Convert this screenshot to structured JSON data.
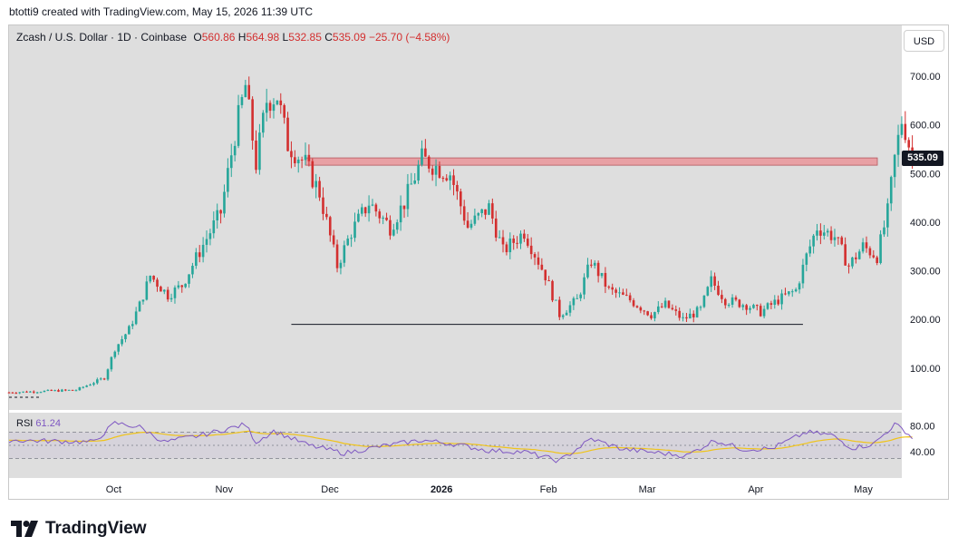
{
  "header": {
    "attribution": "btotti9 created with TradingView.com, May 15, 2026 11:39 UTC"
  },
  "legend": {
    "symbol": "Zcash / U.S. Dollar · 1D · Coinbase",
    "o_label": "O",
    "o": "560.86",
    "h_label": "H",
    "h": "564.98",
    "l_label": "L",
    "l": "532.85",
    "c_label": "C",
    "c": "535.09",
    "change": "−25.70 (−4.58%)"
  },
  "currency_button": "USD",
  "last_price_tag": "535.09",
  "rsi": {
    "label": "RSI",
    "value": "61.24",
    "levels": [
      "80.00",
      "40.00"
    ],
    "overbought": 70,
    "oversold": 30
  },
  "footer": {
    "brand": "TradingView"
  },
  "colors": {
    "up": "#26a69a",
    "down": "#d32f2f",
    "rsi": "#7e57c2",
    "rsi_ma": "#f0c419",
    "zone": "#e8a0a4"
  },
  "chart_data": {
    "type": "candlestick",
    "symbol": "ZEC/USD",
    "interval": "1D",
    "y_ticks": [
      100,
      200,
      300,
      400,
      500,
      600,
      700
    ],
    "y_tick_labels": [
      "100.00",
      "200.00",
      "300.00",
      "400.00",
      "500.00",
      "600.00",
      "700.00"
    ],
    "ylim": [
      0,
      780
    ],
    "x_ticks": [
      "Oct",
      "Nov",
      "Dec",
      "2026",
      "Feb",
      "Mar",
      "Apr",
      "May"
    ],
    "date_range": [
      "2025-09-01",
      "2026-05-15"
    ],
    "annotations": {
      "resistance_zone": [
        517,
        532
      ],
      "support_line": 190
    },
    "close_series_approx": [
      {
        "date": "2025-09-01",
        "close": 50
      },
      {
        "date": "2025-09-20",
        "close": 55
      },
      {
        "date": "2025-09-28",
        "close": 80
      },
      {
        "date": "2025-10-01",
        "close": 140
      },
      {
        "date": "2025-10-05",
        "close": 180
      },
      {
        "date": "2025-10-08",
        "close": 230
      },
      {
        "date": "2025-10-11",
        "close": 290
      },
      {
        "date": "2025-10-16",
        "close": 250
      },
      {
        "date": "2025-10-20",
        "close": 270
      },
      {
        "date": "2025-10-25",
        "close": 340
      },
      {
        "date": "2025-10-31",
        "close": 420
      },
      {
        "date": "2025-11-04",
        "close": 580
      },
      {
        "date": "2025-11-07",
        "close": 680
      },
      {
        "date": "2025-11-10",
        "close": 520
      },
      {
        "date": "2025-11-13",
        "close": 650
      },
      {
        "date": "2025-11-16",
        "close": 660
      },
      {
        "date": "2025-11-19",
        "close": 560
      },
      {
        "date": "2025-11-24",
        "close": 520
      },
      {
        "date": "2025-11-28",
        "close": 460
      },
      {
        "date": "2025-12-03",
        "close": 310
      },
      {
        "date": "2025-12-07",
        "close": 380
      },
      {
        "date": "2025-12-12",
        "close": 440
      },
      {
        "date": "2025-12-18",
        "close": 390
      },
      {
        "date": "2025-12-22",
        "close": 440
      },
      {
        "date": "2025-12-27",
        "close": 530
      },
      {
        "date": "2026-01-01",
        "close": 510
      },
      {
        "date": "2026-01-04",
        "close": 500
      },
      {
        "date": "2026-01-09",
        "close": 390
      },
      {
        "date": "2026-01-15",
        "close": 430
      },
      {
        "date": "2026-01-19",
        "close": 340
      },
      {
        "date": "2026-01-25",
        "close": 380
      },
      {
        "date": "2026-01-31",
        "close": 290
      },
      {
        "date": "2026-02-04",
        "close": 210
      },
      {
        "date": "2026-02-09",
        "close": 240
      },
      {
        "date": "2026-02-13",
        "close": 320
      },
      {
        "date": "2026-02-18",
        "close": 260
      },
      {
        "date": "2026-02-24",
        "close": 240
      },
      {
        "date": "2026-03-02",
        "close": 210
      },
      {
        "date": "2026-03-06",
        "close": 230
      },
      {
        "date": "2026-03-11",
        "close": 200
      },
      {
        "date": "2026-03-16",
        "close": 220
      },
      {
        "date": "2026-03-19",
        "close": 280
      },
      {
        "date": "2026-03-23",
        "close": 240
      },
      {
        "date": "2026-03-29",
        "close": 230
      },
      {
        "date": "2026-04-02",
        "close": 215
      },
      {
        "date": "2026-04-07",
        "close": 240
      },
      {
        "date": "2026-04-12",
        "close": 260
      },
      {
        "date": "2026-04-15",
        "close": 330
      },
      {
        "date": "2026-04-18",
        "close": 390
      },
      {
        "date": "2026-04-23",
        "close": 370
      },
      {
        "date": "2026-04-27",
        "close": 310
      },
      {
        "date": "2026-05-01",
        "close": 350
      },
      {
        "date": "2026-05-05",
        "close": 330
      },
      {
        "date": "2026-05-08",
        "close": 420
      },
      {
        "date": "2026-05-10",
        "close": 530
      },
      {
        "date": "2026-05-12",
        "close": 610
      },
      {
        "date": "2026-05-13",
        "close": 590
      },
      {
        "date": "2026-05-14",
        "close": 561
      },
      {
        "date": "2026-05-15",
        "close": 535
      }
    ],
    "rsi_series_approx": [
      {
        "date": "2025-09-01",
        "rsi": 58
      },
      {
        "date": "2025-09-25",
        "rsi": 55
      },
      {
        "date": "2025-10-01",
        "rsi": 84
      },
      {
        "date": "2025-10-08",
        "rsi": 78
      },
      {
        "date": "2025-10-15",
        "rsi": 55
      },
      {
        "date": "2025-10-25",
        "rsi": 65
      },
      {
        "date": "2025-11-07",
        "rsi": 82
      },
      {
        "date": "2025-11-10",
        "rsi": 55
      },
      {
        "date": "2025-11-15",
        "rsi": 72
      },
      {
        "date": "2025-11-25",
        "rsi": 50
      },
      {
        "date": "2025-12-05",
        "rsi": 38
      },
      {
        "date": "2025-12-15",
        "rsi": 48
      },
      {
        "date": "2025-12-27",
        "rsi": 58
      },
      {
        "date": "2026-01-05",
        "rsi": 52
      },
      {
        "date": "2026-01-15",
        "rsi": 42
      },
      {
        "date": "2026-01-25",
        "rsi": 40
      },
      {
        "date": "2026-02-04",
        "rsi": 26
      },
      {
        "date": "2026-02-13",
        "rsi": 60
      },
      {
        "date": "2026-02-22",
        "rsi": 44
      },
      {
        "date": "2026-03-05",
        "rsi": 38
      },
      {
        "date": "2026-03-12",
        "rsi": 34
      },
      {
        "date": "2026-03-20",
        "rsi": 58
      },
      {
        "date": "2026-03-28",
        "rsi": 44
      },
      {
        "date": "2026-04-05",
        "rsi": 45
      },
      {
        "date": "2026-04-15",
        "rsi": 70
      },
      {
        "date": "2026-04-22",
        "rsi": 66
      },
      {
        "date": "2026-04-28",
        "rsi": 46
      },
      {
        "date": "2026-05-04",
        "rsi": 52
      },
      {
        "date": "2026-05-10",
        "rsi": 82
      },
      {
        "date": "2026-05-13",
        "rsi": 72
      },
      {
        "date": "2026-05-15",
        "rsi": 61
      }
    ]
  }
}
